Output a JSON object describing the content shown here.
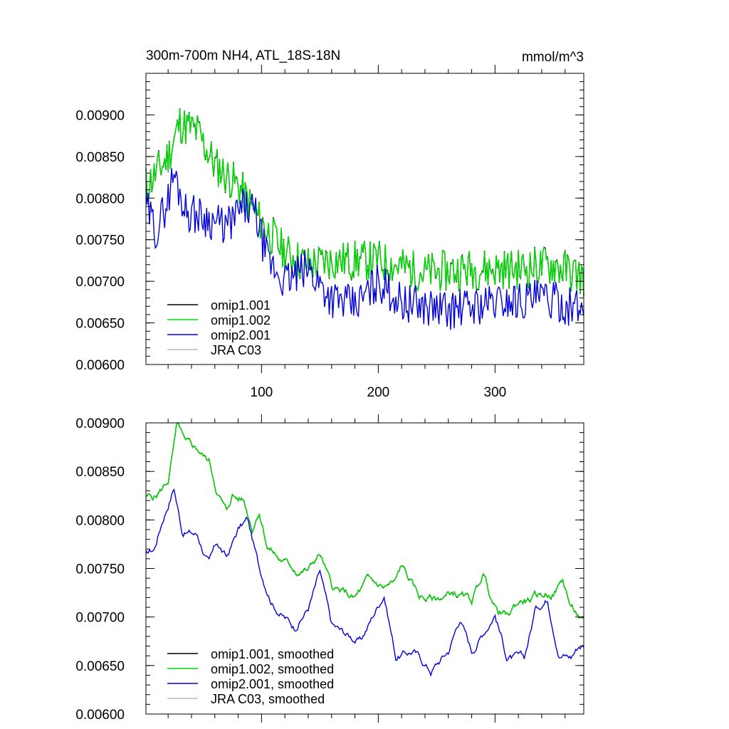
{
  "chart_data": [
    {
      "type": "line",
      "title": "300m-700m NH4, ATL_18S-18N",
      "units": "mmol/m^3",
      "xlim": [
        1,
        376
      ],
      "ylim": [
        0.006,
        0.0095
      ],
      "yticks": [
        "0.00600",
        "0.00650",
        "0.00700",
        "0.00750",
        "0.00800",
        "0.00850",
        "0.00900"
      ],
      "xticks": [
        "100",
        "200",
        "300"
      ],
      "legend_position": "bottom-left",
      "series": [
        {
          "name": "omip1.001",
          "color": "#000000",
          "seed": 11,
          "anchors": [
            [
              1,
              0.00815
            ],
            [
              10,
              0.0083
            ],
            [
              20,
              0.0085
            ],
            [
              30,
              0.0089
            ],
            [
              45,
              0.0088
            ],
            [
              60,
              0.0084
            ],
            [
              80,
              0.00815
            ],
            [
              100,
              0.0077
            ],
            [
              120,
              0.00735
            ],
            [
              140,
              0.0072
            ],
            [
              160,
              0.00725
            ],
            [
              200,
              0.00725
            ],
            [
              240,
              0.0071
            ],
            [
              280,
              0.00715
            ],
            [
              320,
              0.00715
            ],
            [
              350,
              0.0072
            ],
            [
              376,
              0.00705
            ]
          ],
          "amp": 0.00025
        },
        {
          "name": "omip1.002",
          "color": "#00dd00",
          "seed": 11,
          "anchors": [
            [
              1,
              0.00815
            ],
            [
              10,
              0.0083
            ],
            [
              20,
              0.0085
            ],
            [
              30,
              0.0089
            ],
            [
              45,
              0.0088
            ],
            [
              60,
              0.0084
            ],
            [
              80,
              0.00815
            ],
            [
              100,
              0.0077
            ],
            [
              120,
              0.00735
            ],
            [
              140,
              0.0072
            ],
            [
              160,
              0.00725
            ],
            [
              200,
              0.00725
            ],
            [
              240,
              0.0071
            ],
            [
              280,
              0.00715
            ],
            [
              320,
              0.00715
            ],
            [
              350,
              0.0072
            ],
            [
              376,
              0.00705
            ]
          ],
          "amp": 0.00025
        },
        {
          "name": "omip2.001",
          "color": "#0000dd",
          "seed": 29,
          "anchors": [
            [
              1,
              0.0079
            ],
            [
              10,
              0.0076
            ],
            [
              20,
              0.008
            ],
            [
              25,
              0.0083
            ],
            [
              35,
              0.00785
            ],
            [
              55,
              0.00775
            ],
            [
              70,
              0.00765
            ],
            [
              85,
              0.0079
            ],
            [
              95,
              0.0078
            ],
            [
              105,
              0.00725
            ],
            [
              120,
              0.007
            ],
            [
              140,
              0.00715
            ],
            [
              160,
              0.0068
            ],
            [
              180,
              0.0067
            ],
            [
              200,
              0.007
            ],
            [
              220,
              0.00675
            ],
            [
              260,
              0.00665
            ],
            [
              300,
              0.00675
            ],
            [
              340,
              0.0068
            ],
            [
              376,
              0.00665
            ]
          ],
          "amp": 0.00024
        },
        {
          "name": "JRA C03",
          "color": "#bbbbbb",
          "seed": 0,
          "anchors": [],
          "amp": 0
        }
      ]
    },
    {
      "type": "line",
      "xlim": [
        1,
        376
      ],
      "ylim": [
        0.006,
        0.009
      ],
      "yticks": [
        "0.00600",
        "0.00650",
        "0.00700",
        "0.00750",
        "0.00800",
        "0.00850",
        "0.00900"
      ],
      "xticks": [],
      "legend_position": "bottom-left",
      "series": [
        {
          "name": "omip1.001, smoothed",
          "color": "#000000",
          "seed": 5,
          "anchors": [
            [
              1,
              0.00822
            ],
            [
              10,
              0.00825
            ],
            [
              20,
              0.0084
            ],
            [
              28,
              0.00898
            ],
            [
              35,
              0.00875
            ],
            [
              45,
              0.00872
            ],
            [
              55,
              0.0086
            ],
            [
              62,
              0.0083
            ],
            [
              70,
              0.00808
            ],
            [
              75,
              0.00825
            ],
            [
              85,
              0.0082
            ],
            [
              92,
              0.00792
            ],
            [
              98,
              0.00812
            ],
            [
              105,
              0.00775
            ],
            [
              115,
              0.0076
            ],
            [
              130,
              0.00748
            ],
            [
              140,
              0.00748
            ],
            [
              150,
              0.00765
            ],
            [
              160,
              0.0073
            ],
            [
              180,
              0.00718
            ],
            [
              190,
              0.00735
            ],
            [
              205,
              0.0073
            ],
            [
              215,
              0.00735
            ],
            [
              220,
              0.00752
            ],
            [
              235,
              0.0072
            ],
            [
              250,
              0.00718
            ],
            [
              265,
              0.00725
            ],
            [
              280,
              0.00715
            ],
            [
              290,
              0.00745
            ],
            [
              300,
              0.0071
            ],
            [
              310,
              0.007
            ],
            [
              320,
              0.00715
            ],
            [
              335,
              0.0072
            ],
            [
              350,
              0.00725
            ],
            [
              358,
              0.00738
            ],
            [
              365,
              0.0071
            ],
            [
              375,
              0.00695
            ]
          ],
          "amp": 6e-05
        },
        {
          "name": "omip1.002, smoothed",
          "color": "#00dd00",
          "seed": 5,
          "anchors": [
            [
              1,
              0.00822
            ],
            [
              10,
              0.00825
            ],
            [
              20,
              0.0084
            ],
            [
              28,
              0.00898
            ],
            [
              35,
              0.00875
            ],
            [
              45,
              0.00872
            ],
            [
              55,
              0.0086
            ],
            [
              62,
              0.0083
            ],
            [
              70,
              0.00808
            ],
            [
              75,
              0.00825
            ],
            [
              85,
              0.0082
            ],
            [
              92,
              0.00792
            ],
            [
              98,
              0.00812
            ],
            [
              105,
              0.00775
            ],
            [
              115,
              0.0076
            ],
            [
              130,
              0.00748
            ],
            [
              140,
              0.00748
            ],
            [
              150,
              0.00765
            ],
            [
              160,
              0.0073
            ],
            [
              180,
              0.00718
            ],
            [
              190,
              0.00735
            ],
            [
              205,
              0.0073
            ],
            [
              215,
              0.00735
            ],
            [
              220,
              0.00752
            ],
            [
              235,
              0.0072
            ],
            [
              250,
              0.00718
            ],
            [
              265,
              0.00725
            ],
            [
              280,
              0.00715
            ],
            [
              290,
              0.00745
            ],
            [
              300,
              0.0071
            ],
            [
              310,
              0.007
            ],
            [
              320,
              0.00715
            ],
            [
              335,
              0.0072
            ],
            [
              350,
              0.00725
            ],
            [
              358,
              0.00738
            ],
            [
              365,
              0.0071
            ],
            [
              375,
              0.00695
            ]
          ],
          "amp": 6e-05
        },
        {
          "name": "omip2.001, smoothed",
          "color": "#0000dd",
          "seed": 17,
          "anchors": [
            [
              1,
              0.00766
            ],
            [
              8,
              0.0077
            ],
            [
              15,
              0.008
            ],
            [
              25,
              0.00835
            ],
            [
              32,
              0.0079
            ],
            [
              45,
              0.00785
            ],
            [
              55,
              0.00755
            ],
            [
              62,
              0.00775
            ],
            [
              70,
              0.0076
            ],
            [
              80,
              0.0079
            ],
            [
              88,
              0.008
            ],
            [
              98,
              0.0075
            ],
            [
              110,
              0.00715
            ],
            [
              120,
              0.007
            ],
            [
              128,
              0.0069
            ],
            [
              140,
              0.0071
            ],
            [
              150,
              0.00745
            ],
            [
              160,
              0.0069
            ],
            [
              175,
              0.0068
            ],
            [
              185,
              0.00675
            ],
            [
              195,
              0.007
            ],
            [
              205,
              0.00725
            ],
            [
              215,
              0.0066
            ],
            [
              230,
              0.00665
            ],
            [
              245,
              0.00645
            ],
            [
              260,
              0.00665
            ],
            [
              270,
              0.007
            ],
            [
              280,
              0.00665
            ],
            [
              300,
              0.00705
            ],
            [
              310,
              0.0066
            ],
            [
              325,
              0.00655
            ],
            [
              335,
              0.0071
            ],
            [
              345,
              0.0072
            ],
            [
              355,
              0.00665
            ],
            [
              365,
              0.0066
            ],
            [
              372,
              0.00672
            ]
          ],
          "amp": 6e-05
        },
        {
          "name": "JRA C03, smoothed",
          "color": "#bbbbbb",
          "seed": 0,
          "anchors": [],
          "amp": 0
        }
      ]
    }
  ]
}
